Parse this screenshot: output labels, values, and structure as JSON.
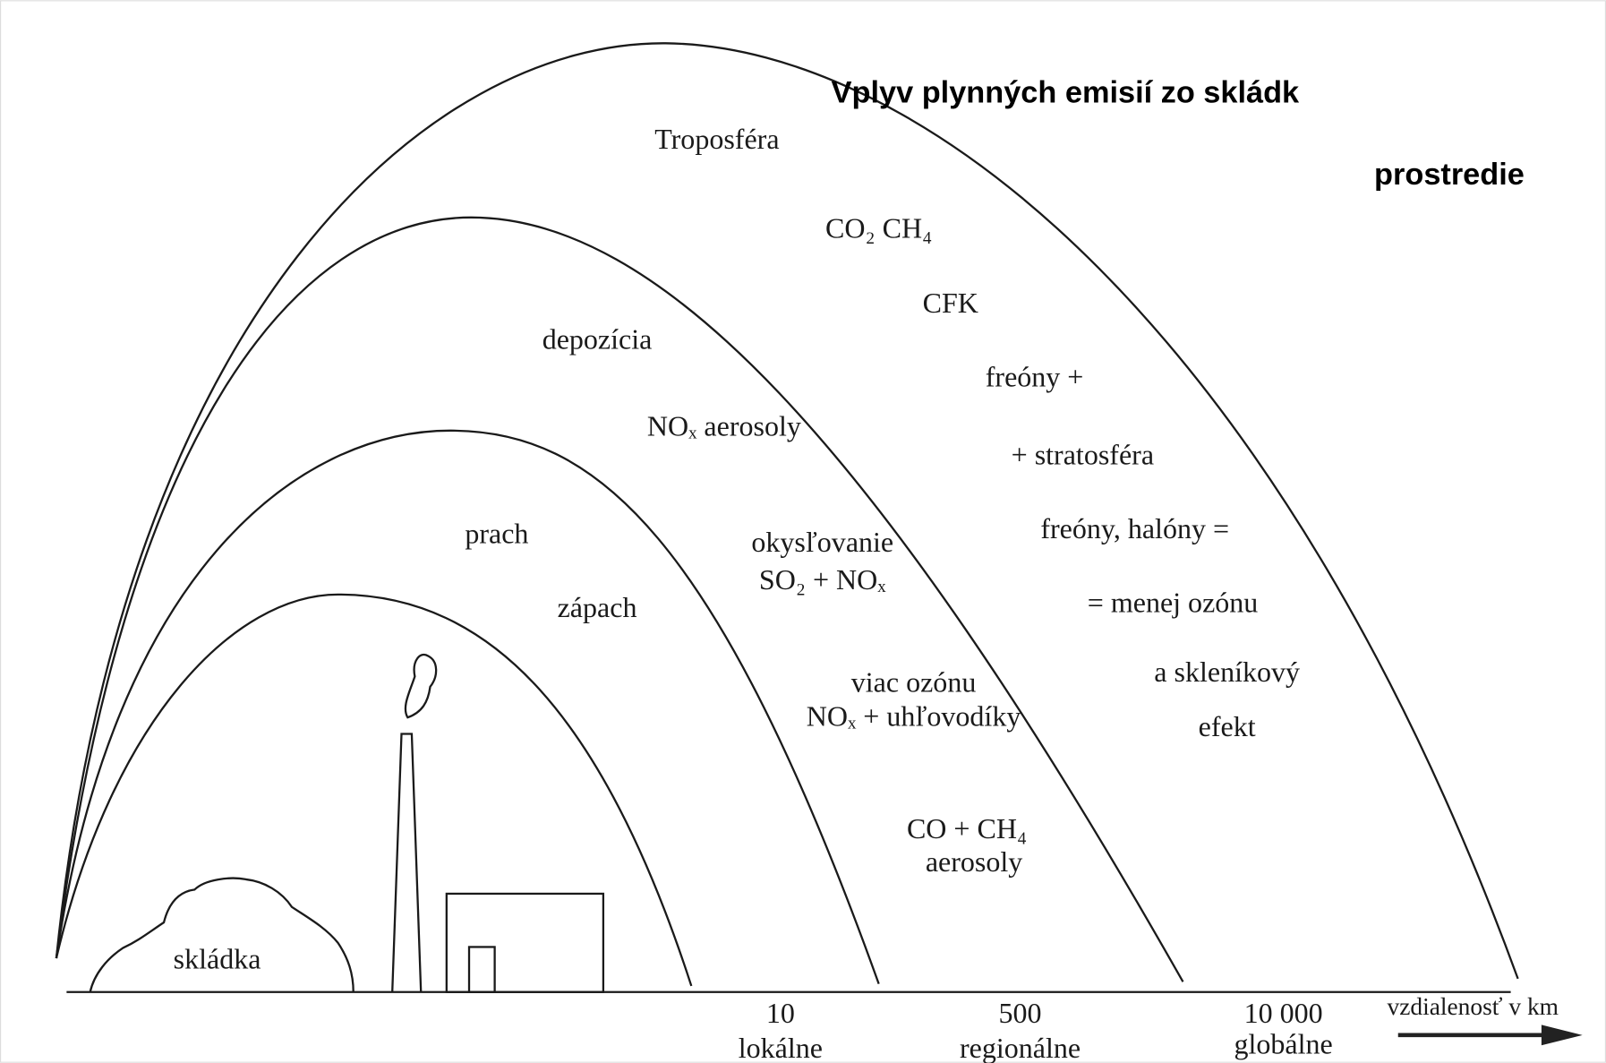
{
  "title": [
    "Vplyv plynných emisií zo skládk",
    "prostredie"
  ],
  "zone_labels": [
    "Troposféra",
    "CO₂  CH₄",
    "CFK",
    "freóny +",
    "+ stratosféra",
    "freóny, halóny =",
    "= menej ozónu",
    "a skleníkový",
    "efekt",
    "depozícia",
    "NOₓ aerosoly",
    "prach",
    "zápach",
    "okysľovanie",
    "SO₂ + NOₓ",
    "viac ozónu",
    "NOₓ + uhľovodíky",
    "CO + CH₄",
    "aerosoly"
  ],
  "site_label": "skládka",
  "scale": [
    {
      "distance": "10",
      "region": "lokálne"
    },
    {
      "distance": "500",
      "region": "regionálne"
    },
    {
      "distance": "10 000",
      "region": "globálne"
    }
  ],
  "axis_label": "vzdialenosť v km"
}
